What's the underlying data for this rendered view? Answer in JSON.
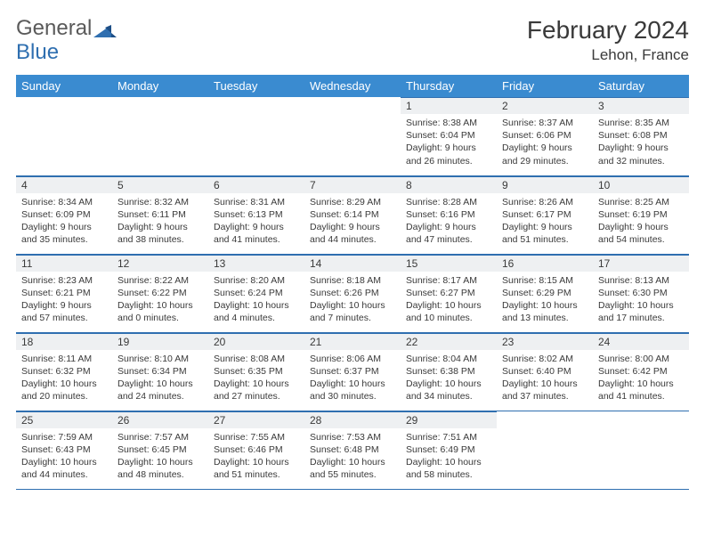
{
  "logo": {
    "text1": "General",
    "text2": "Blue"
  },
  "title": "February 2024",
  "location": "Lehon, France",
  "colors": {
    "header_bg": "#3a8bd0",
    "header_text": "#ffffff",
    "rule": "#2f6fb0",
    "daynum_bg": "#eef0f2",
    "text": "#3a3a3a",
    "logo_gray": "#5a5a5a",
    "logo_blue": "#2f6fb0"
  },
  "weekdays": [
    "Sunday",
    "Monday",
    "Tuesday",
    "Wednesday",
    "Thursday",
    "Friday",
    "Saturday"
  ],
  "first_weekday_index": 4,
  "days": [
    {
      "n": "1",
      "sunrise": "8:38 AM",
      "sunset": "6:04 PM",
      "daylight": "9 hours and 26 minutes."
    },
    {
      "n": "2",
      "sunrise": "8:37 AM",
      "sunset": "6:06 PM",
      "daylight": "9 hours and 29 minutes."
    },
    {
      "n": "3",
      "sunrise": "8:35 AM",
      "sunset": "6:08 PM",
      "daylight": "9 hours and 32 minutes."
    },
    {
      "n": "4",
      "sunrise": "8:34 AM",
      "sunset": "6:09 PM",
      "daylight": "9 hours and 35 minutes."
    },
    {
      "n": "5",
      "sunrise": "8:32 AM",
      "sunset": "6:11 PM",
      "daylight": "9 hours and 38 minutes."
    },
    {
      "n": "6",
      "sunrise": "8:31 AM",
      "sunset": "6:13 PM",
      "daylight": "9 hours and 41 minutes."
    },
    {
      "n": "7",
      "sunrise": "8:29 AM",
      "sunset": "6:14 PM",
      "daylight": "9 hours and 44 minutes."
    },
    {
      "n": "8",
      "sunrise": "8:28 AM",
      "sunset": "6:16 PM",
      "daylight": "9 hours and 47 minutes."
    },
    {
      "n": "9",
      "sunrise": "8:26 AM",
      "sunset": "6:17 PM",
      "daylight": "9 hours and 51 minutes."
    },
    {
      "n": "10",
      "sunrise": "8:25 AM",
      "sunset": "6:19 PM",
      "daylight": "9 hours and 54 minutes."
    },
    {
      "n": "11",
      "sunrise": "8:23 AM",
      "sunset": "6:21 PM",
      "daylight": "9 hours and 57 minutes."
    },
    {
      "n": "12",
      "sunrise": "8:22 AM",
      "sunset": "6:22 PM",
      "daylight": "10 hours and 0 minutes."
    },
    {
      "n": "13",
      "sunrise": "8:20 AM",
      "sunset": "6:24 PM",
      "daylight": "10 hours and 4 minutes."
    },
    {
      "n": "14",
      "sunrise": "8:18 AM",
      "sunset": "6:26 PM",
      "daylight": "10 hours and 7 minutes."
    },
    {
      "n": "15",
      "sunrise": "8:17 AM",
      "sunset": "6:27 PM",
      "daylight": "10 hours and 10 minutes."
    },
    {
      "n": "16",
      "sunrise": "8:15 AM",
      "sunset": "6:29 PM",
      "daylight": "10 hours and 13 minutes."
    },
    {
      "n": "17",
      "sunrise": "8:13 AM",
      "sunset": "6:30 PM",
      "daylight": "10 hours and 17 minutes."
    },
    {
      "n": "18",
      "sunrise": "8:11 AM",
      "sunset": "6:32 PM",
      "daylight": "10 hours and 20 minutes."
    },
    {
      "n": "19",
      "sunrise": "8:10 AM",
      "sunset": "6:34 PM",
      "daylight": "10 hours and 24 minutes."
    },
    {
      "n": "20",
      "sunrise": "8:08 AM",
      "sunset": "6:35 PM",
      "daylight": "10 hours and 27 minutes."
    },
    {
      "n": "21",
      "sunrise": "8:06 AM",
      "sunset": "6:37 PM",
      "daylight": "10 hours and 30 minutes."
    },
    {
      "n": "22",
      "sunrise": "8:04 AM",
      "sunset": "6:38 PM",
      "daylight": "10 hours and 34 minutes."
    },
    {
      "n": "23",
      "sunrise": "8:02 AM",
      "sunset": "6:40 PM",
      "daylight": "10 hours and 37 minutes."
    },
    {
      "n": "24",
      "sunrise": "8:00 AM",
      "sunset": "6:42 PM",
      "daylight": "10 hours and 41 minutes."
    },
    {
      "n": "25",
      "sunrise": "7:59 AM",
      "sunset": "6:43 PM",
      "daylight": "10 hours and 44 minutes."
    },
    {
      "n": "26",
      "sunrise": "7:57 AM",
      "sunset": "6:45 PM",
      "daylight": "10 hours and 48 minutes."
    },
    {
      "n": "27",
      "sunrise": "7:55 AM",
      "sunset": "6:46 PM",
      "daylight": "10 hours and 51 minutes."
    },
    {
      "n": "28",
      "sunrise": "7:53 AM",
      "sunset": "6:48 PM",
      "daylight": "10 hours and 55 minutes."
    },
    {
      "n": "29",
      "sunrise": "7:51 AM",
      "sunset": "6:49 PM",
      "daylight": "10 hours and 58 minutes."
    }
  ],
  "labels": {
    "sunrise": "Sunrise:",
    "sunset": "Sunset:",
    "daylight": "Daylight:"
  }
}
